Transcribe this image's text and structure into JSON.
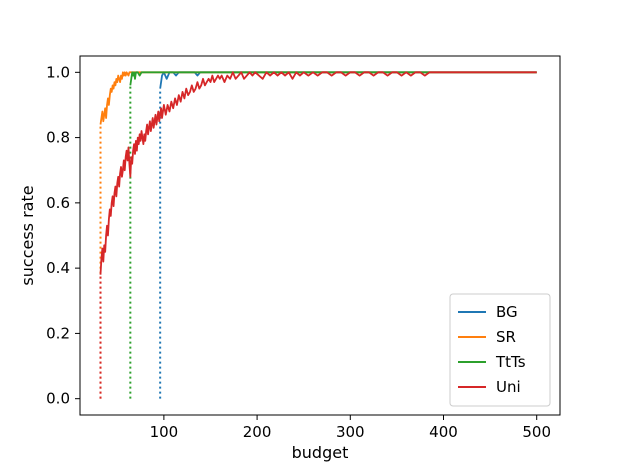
{
  "chart_data": {
    "type": "line",
    "title": "",
    "xlabel": "budget",
    "ylabel": "success rate",
    "xlim": [
      10,
      525
    ],
    "ylim": [
      -0.05,
      1.05
    ],
    "x_ticks": [
      100,
      200,
      300,
      400,
      500
    ],
    "y_ticks": [
      0.0,
      0.2,
      0.4,
      0.6,
      0.8,
      1.0
    ],
    "x_tick_labels": [
      "100",
      "200",
      "300",
      "400",
      "500"
    ],
    "y_tick_labels": [
      "0.0",
      "0.2",
      "0.4",
      "0.6",
      "0.8",
      "1.0"
    ],
    "legend_position": "lower-right",
    "series": [
      {
        "name": "BG",
        "color": "#1f77b4",
        "start_budget": 96,
        "points": [
          [
            96,
            0.95
          ],
          [
            98,
            0.99
          ],
          [
            100,
            1.0
          ],
          [
            103,
            0.98
          ],
          [
            106,
            1.0
          ],
          [
            110,
            1.0
          ],
          [
            113,
            0.99
          ],
          [
            116,
            1.0
          ],
          [
            125,
            1.0
          ],
          [
            133,
            1.0
          ],
          [
            136,
            0.99
          ],
          [
            139,
            1.0
          ],
          [
            160,
            1.0
          ],
          [
            185,
            1.0
          ],
          [
            500,
            1.0
          ]
        ]
      },
      {
        "name": "SR",
        "color": "#ff7f0e",
        "start_budget": 32,
        "points": [
          [
            32,
            0.84
          ],
          [
            33,
            0.86
          ],
          [
            34,
            0.88
          ],
          [
            35,
            0.85
          ],
          [
            36,
            0.87
          ],
          [
            37,
            0.89
          ],
          [
            38,
            0.86
          ],
          [
            39,
            0.9
          ],
          [
            40,
            0.92
          ],
          [
            41,
            0.9
          ],
          [
            42,
            0.93
          ],
          [
            43,
            0.95
          ],
          [
            44,
            0.94
          ],
          [
            45,
            0.96
          ],
          [
            46,
            0.95
          ],
          [
            47,
            0.97
          ],
          [
            48,
            0.96
          ],
          [
            49,
            0.98
          ],
          [
            50,
            0.97
          ],
          [
            51,
            0.99
          ],
          [
            52,
            0.98
          ],
          [
            53,
            0.97
          ],
          [
            54,
            0.99
          ],
          [
            55,
            0.98
          ],
          [
            56,
            1.0
          ],
          [
            57,
            0.99
          ],
          [
            58,
            1.0
          ],
          [
            59,
            0.99
          ],
          [
            60,
            1.0
          ],
          [
            62,
            0.99
          ],
          [
            63,
            1.0
          ],
          [
            65,
            1.0
          ],
          [
            70,
            1.0
          ],
          [
            500,
            1.0
          ]
        ]
      },
      {
        "name": "TtTs",
        "color": "#2ca02c",
        "start_budget": 64,
        "points": [
          [
            64,
            0.96
          ],
          [
            65,
            0.98
          ],
          [
            66,
            1.0
          ],
          [
            67,
            0.99
          ],
          [
            68,
            1.0
          ],
          [
            69,
            0.98
          ],
          [
            70,
            1.0
          ],
          [
            72,
            1.0
          ],
          [
            74,
            0.99
          ],
          [
            76,
            1.0
          ],
          [
            80,
            1.0
          ],
          [
            500,
            1.0
          ]
        ]
      },
      {
        "name": "Uni",
        "color": "#d62728",
        "start_budget": 32,
        "points": [
          [
            32,
            0.38
          ],
          [
            33,
            0.43
          ],
          [
            34,
            0.46
          ],
          [
            35,
            0.42
          ],
          [
            36,
            0.47
          ],
          [
            37,
            0.45
          ],
          [
            38,
            0.5
          ],
          [
            39,
            0.53
          ],
          [
            40,
            0.5
          ],
          [
            41,
            0.55
          ],
          [
            42,
            0.58
          ],
          [
            43,
            0.56
          ],
          [
            44,
            0.6
          ],
          [
            45,
            0.62
          ],
          [
            46,
            0.59
          ],
          [
            47,
            0.63
          ],
          [
            48,
            0.65
          ],
          [
            49,
            0.62
          ],
          [
            50,
            0.66
          ],
          [
            51,
            0.68
          ],
          [
            52,
            0.65
          ],
          [
            53,
            0.69
          ],
          [
            54,
            0.71
          ],
          [
            55,
            0.68
          ],
          [
            56,
            0.7
          ],
          [
            57,
            0.73
          ],
          [
            58,
            0.7
          ],
          [
            59,
            0.74
          ],
          [
            60,
            0.76
          ],
          [
            61,
            0.73
          ],
          [
            62,
            0.77
          ],
          [
            63,
            0.72
          ],
          [
            64,
            0.68
          ],
          [
            65,
            0.74
          ],
          [
            66,
            0.72
          ],
          [
            67,
            0.76
          ],
          [
            68,
            0.78
          ],
          [
            69,
            0.75
          ],
          [
            70,
            0.79
          ],
          [
            71,
            0.76
          ],
          [
            72,
            0.8
          ],
          [
            73,
            0.78
          ],
          [
            74,
            0.81
          ],
          [
            75,
            0.79
          ],
          [
            76,
            0.82
          ],
          [
            77,
            0.8
          ],
          [
            78,
            0.78
          ],
          [
            79,
            0.81
          ],
          [
            80,
            0.79
          ],
          [
            81,
            0.82
          ],
          [
            82,
            0.84
          ],
          [
            83,
            0.81
          ],
          [
            84,
            0.83
          ],
          [
            85,
            0.85
          ],
          [
            86,
            0.82
          ],
          [
            87,
            0.84
          ],
          [
            88,
            0.86
          ],
          [
            89,
            0.83
          ],
          [
            90,
            0.85
          ],
          [
            91,
            0.87
          ],
          [
            92,
            0.84
          ],
          [
            93,
            0.86
          ],
          [
            94,
            0.88
          ],
          [
            95,
            0.85
          ],
          [
            96,
            0.87
          ],
          [
            97,
            0.89
          ],
          [
            98,
            0.86
          ],
          [
            99,
            0.88
          ],
          [
            100,
            0.9
          ],
          [
            102,
            0.87
          ],
          [
            104,
            0.9
          ],
          [
            106,
            0.88
          ],
          [
            108,
            0.91
          ],
          [
            110,
            0.89
          ],
          [
            112,
            0.92
          ],
          [
            114,
            0.9
          ],
          [
            116,
            0.93
          ],
          [
            118,
            0.91
          ],
          [
            120,
            0.94
          ],
          [
            122,
            0.92
          ],
          [
            124,
            0.95
          ],
          [
            126,
            0.93
          ],
          [
            128,
            0.94
          ],
          [
            130,
            0.96
          ],
          [
            132,
            0.94
          ],
          [
            134,
            0.95
          ],
          [
            136,
            0.97
          ],
          [
            138,
            0.95
          ],
          [
            140,
            0.96
          ],
          [
            142,
            0.98
          ],
          [
            144,
            0.96
          ],
          [
            146,
            0.97
          ],
          [
            148,
            0.98
          ],
          [
            150,
            0.97
          ],
          [
            152,
            0.99
          ],
          [
            154,
            0.97
          ],
          [
            156,
            0.98
          ],
          [
            158,
            0.99
          ],
          [
            160,
            0.98
          ],
          [
            162,
            0.99
          ],
          [
            165,
            0.97
          ],
          [
            168,
            0.99
          ],
          [
            171,
            0.98
          ],
          [
            174,
            1.0
          ],
          [
            177,
            0.98
          ],
          [
            180,
            0.99
          ],
          [
            183,
            1.0
          ],
          [
            186,
            0.98
          ],
          [
            189,
            0.99
          ],
          [
            192,
            1.0
          ],
          [
            195,
            0.99
          ],
          [
            198,
            1.0
          ],
          [
            202,
            0.99
          ],
          [
            206,
            0.98
          ],
          [
            210,
            1.0
          ],
          [
            214,
            0.99
          ],
          [
            218,
            1.0
          ],
          [
            222,
            0.99
          ],
          [
            226,
            1.0
          ],
          [
            230,
            0.99
          ],
          [
            234,
            1.0
          ],
          [
            238,
            0.98
          ],
          [
            242,
            1.0
          ],
          [
            246,
            0.99
          ],
          [
            250,
            1.0
          ],
          [
            255,
            0.99
          ],
          [
            260,
            1.0
          ],
          [
            265,
            0.99
          ],
          [
            270,
            1.0
          ],
          [
            275,
            1.0
          ],
          [
            280,
            0.99
          ],
          [
            285,
            1.0
          ],
          [
            290,
            1.0
          ],
          [
            295,
            0.99
          ],
          [
            300,
            1.0
          ],
          [
            305,
            1.0
          ],
          [
            310,
            0.99
          ],
          [
            315,
            1.0
          ],
          [
            320,
            1.0
          ],
          [
            325,
            0.99
          ],
          [
            330,
            1.0
          ],
          [
            335,
            1.0
          ],
          [
            340,
            0.99
          ],
          [
            345,
            1.0
          ],
          [
            350,
            1.0
          ],
          [
            355,
            0.99
          ],
          [
            360,
            1.0
          ],
          [
            365,
            0.99
          ],
          [
            370,
            1.0
          ],
          [
            375,
            1.0
          ],
          [
            380,
            0.99
          ],
          [
            385,
            1.0
          ],
          [
            400,
            1.0
          ],
          [
            500,
            1.0
          ]
        ]
      }
    ]
  }
}
